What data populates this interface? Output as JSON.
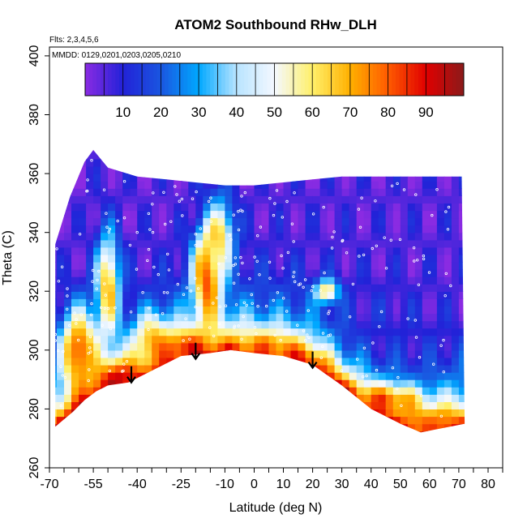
{
  "chart_data": {
    "type": "heatmap",
    "title": "ATOM2 Southbound RHw_DLH",
    "subtitle_flights": "Flts: 2,3,4,5,6",
    "subtitle_dates": "MMDD: 0129,0201,0203,0205,0210",
    "xlabel": "Latitude (deg N)",
    "ylabel": "Theta (C)",
    "xlim": [
      -70,
      85
    ],
    "ylim": [
      260,
      403
    ],
    "x_ticks_labeled": [
      -70,
      -55,
      -40,
      -25,
      -10,
      0,
      10,
      20,
      30,
      40,
      50,
      60,
      70,
      80
    ],
    "x_tick_labels": [
      "-70",
      "-55",
      "-40",
      "-25",
      "-10",
      "0",
      "10",
      "20",
      "30",
      "40",
      "50",
      "60",
      "70",
      "80"
    ],
    "y_ticks": [
      260,
      280,
      300,
      320,
      340,
      360,
      380,
      400
    ],
    "y_tick_labels": [
      "260",
      "280",
      "300",
      "320",
      "340",
      "360",
      "380",
      "400"
    ],
    "colorbar": {
      "range": [
        0,
        100
      ],
      "ticks": [
        10,
        20,
        30,
        40,
        50,
        60,
        70,
        80,
        90
      ],
      "tick_labels": [
        "10",
        "20",
        "30",
        "40",
        "50",
        "60",
        "70",
        "80",
        "90"
      ],
      "stops": [
        [
          0,
          "#8a2be2"
        ],
        [
          10,
          "#2222d8"
        ],
        [
          20,
          "#1a56e0"
        ],
        [
          30,
          "#00a8ff"
        ],
        [
          40,
          "#b8e4ff"
        ],
        [
          50,
          "#f4f8ff"
        ],
        [
          60,
          "#fff06a"
        ],
        [
          70,
          "#ffb000"
        ],
        [
          80,
          "#ff5a00"
        ],
        [
          90,
          "#e00000"
        ],
        [
          100,
          "#8b1a1a"
        ]
      ]
    },
    "coverage": {
      "top": [
        [
          -68,
          336
        ],
        [
          -63,
          352
        ],
        [
          -58,
          364
        ],
        [
          -55,
          368
        ],
        [
          -50,
          362
        ],
        [
          -40,
          359
        ],
        [
          -30,
          358
        ],
        [
          -20,
          357
        ],
        [
          -10,
          356
        ],
        [
          0,
          356
        ],
        [
          10,
          357
        ],
        [
          20,
          358
        ],
        [
          30,
          359
        ],
        [
          40,
          359
        ],
        [
          50,
          359
        ],
        [
          60,
          359
        ],
        [
          65,
          359
        ],
        [
          71,
          359
        ]
      ],
      "bottom": [
        [
          -68,
          274
        ],
        [
          -62,
          279
        ],
        [
          -58,
          283
        ],
        [
          -54,
          286
        ],
        [
          -50,
          288
        ],
        [
          -43,
          289
        ],
        [
          -35,
          293
        ],
        [
          -25,
          298
        ],
        [
          -15,
          299
        ],
        [
          -8,
          300
        ],
        [
          0,
          299
        ],
        [
          10,
          298
        ],
        [
          20,
          295
        ],
        [
          30,
          288
        ],
        [
          40,
          280
        ],
        [
          50,
          275
        ],
        [
          57,
          272
        ],
        [
          62,
          273
        ],
        [
          67,
          274
        ],
        [
          72,
          275
        ]
      ]
    },
    "humid_tongues": [
      {
        "lat": -60,
        "theta": 300,
        "value": 85,
        "sx": 6,
        "sy": 14
      },
      {
        "lat": -50,
        "theta": 322,
        "value": 70,
        "sx": 4,
        "sy": 18
      },
      {
        "lat": -46,
        "theta": 290,
        "value": 92,
        "sx": 7,
        "sy": 6
      },
      {
        "lat": -35,
        "theta": 302,
        "value": 72,
        "sx": 6,
        "sy": 10
      },
      {
        "lat": -24,
        "theta": 300,
        "value": 88,
        "sx": 7,
        "sy": 6
      },
      {
        "lat": -16,
        "theta": 325,
        "value": 84,
        "sx": 5,
        "sy": 18
      },
      {
        "lat": -12,
        "theta": 340,
        "value": 68,
        "sx": 5,
        "sy": 12
      },
      {
        "lat": 5,
        "theta": 300,
        "value": 78,
        "sx": 9,
        "sy": 5
      },
      {
        "lat": 15,
        "theta": 295,
        "value": 86,
        "sx": 8,
        "sy": 5
      },
      {
        "lat": 25,
        "theta": 320,
        "value": 70,
        "sx": 4,
        "sy": 4
      },
      {
        "lat": 45,
        "theta": 283,
        "value": 82,
        "sx": 12,
        "sy": 5
      },
      {
        "lat": 60,
        "theta": 276,
        "value": 78,
        "sx": 8,
        "sy": 4
      }
    ],
    "dry_regions": [
      {
        "lat": -30,
        "theta": 350,
        "value": 5,
        "sx": 14,
        "sy": 8
      },
      {
        "lat": 20,
        "theta": 345,
        "value": 6,
        "sx": 18,
        "sy": 10
      },
      {
        "lat": 45,
        "theta": 310,
        "value": 10,
        "sx": 14,
        "sy": 14
      },
      {
        "lat": 60,
        "theta": 340,
        "value": 6,
        "sx": 10,
        "sy": 12
      }
    ],
    "arrows": [
      {
        "lat": -42,
        "theta": 289
      },
      {
        "lat": -20,
        "theta": 297
      },
      {
        "lat": 20,
        "theta": 294
      }
    ]
  }
}
